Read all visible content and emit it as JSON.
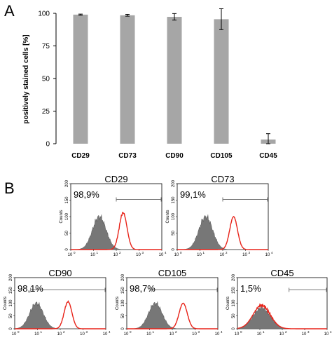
{
  "chart_data": [
    {
      "type": "bar",
      "panel_label": "A",
      "categories": [
        "CD29",
        "CD73",
        "CD90",
        "CD105",
        "CD45"
      ],
      "values": [
        99.0,
        98.5,
        97.3,
        95.5,
        3.2
      ],
      "errors": [
        0.4,
        0.7,
        2.5,
        8.0,
        4.5
      ],
      "ylabel": "positively stained cells  [%]",
      "ylim": [
        0,
        100
      ],
      "yticks": [
        "0",
        "25",
        "50",
        "75",
        "100"
      ],
      "grid": false,
      "colors": {
        "bar": "#a6a6a6",
        "error": "#000000"
      }
    },
    {
      "type": "area",
      "panel_label": "B",
      "xscale": "log",
      "xticks": [
        "10",
        "10",
        "10",
        "10",
        "10"
      ],
      "xtick_exponents": [
        "0",
        "1",
        "2",
        "3",
        "4"
      ],
      "xlim": [
        1,
        10000
      ],
      "ylabel": "Counts",
      "yticks": [
        "0",
        "50",
        "100",
        "150",
        "200"
      ],
      "ylim": [
        0,
        200
      ],
      "colors": {
        "control_fill": "#777777",
        "stained_line": "#e8241a"
      },
      "panels": [
        {
          "title": "CD29",
          "percent": "98,9%",
          "gate": [
            100,
            10000
          ],
          "control": {
            "peak_x": 18,
            "peak_y": 100,
            "width": 0.3
          },
          "stained": {
            "peak_x": 200,
            "peak_y": 112,
            "width": 0.17
          }
        },
        {
          "title": "CD73",
          "percent": "99,1%",
          "gate": [
            100,
            10000
          ],
          "control": {
            "peak_x": 18,
            "peak_y": 100,
            "width": 0.3
          },
          "stained": {
            "peak_x": 300,
            "peak_y": 100,
            "width": 0.17
          }
        },
        {
          "title": "CD90",
          "percent": "98,1%",
          "gate": [
            5,
            10000
          ],
          "control": {
            "peak_x": 9,
            "peak_y": 100,
            "width": 0.3
          },
          "stained": {
            "peak_x": 220,
            "peak_y": 106,
            "width": 0.17
          }
        },
        {
          "title": "CD105",
          "percent": "98,7%",
          "gate": [
            12,
            10000
          ],
          "control": {
            "peak_x": 18,
            "peak_y": 100,
            "width": 0.3
          },
          "stained": {
            "peak_x": 300,
            "peak_y": 100,
            "width": 0.18
          }
        },
        {
          "title": "CD45",
          "percent": "1,5%",
          "gate": [
            200,
            10000
          ],
          "control": {
            "peak_x": 12,
            "peak_y": 82,
            "width": 0.38
          },
          "stained": {
            "peak_x": 12,
            "peak_y": 92,
            "width": 0.38
          }
        }
      ]
    }
  ]
}
